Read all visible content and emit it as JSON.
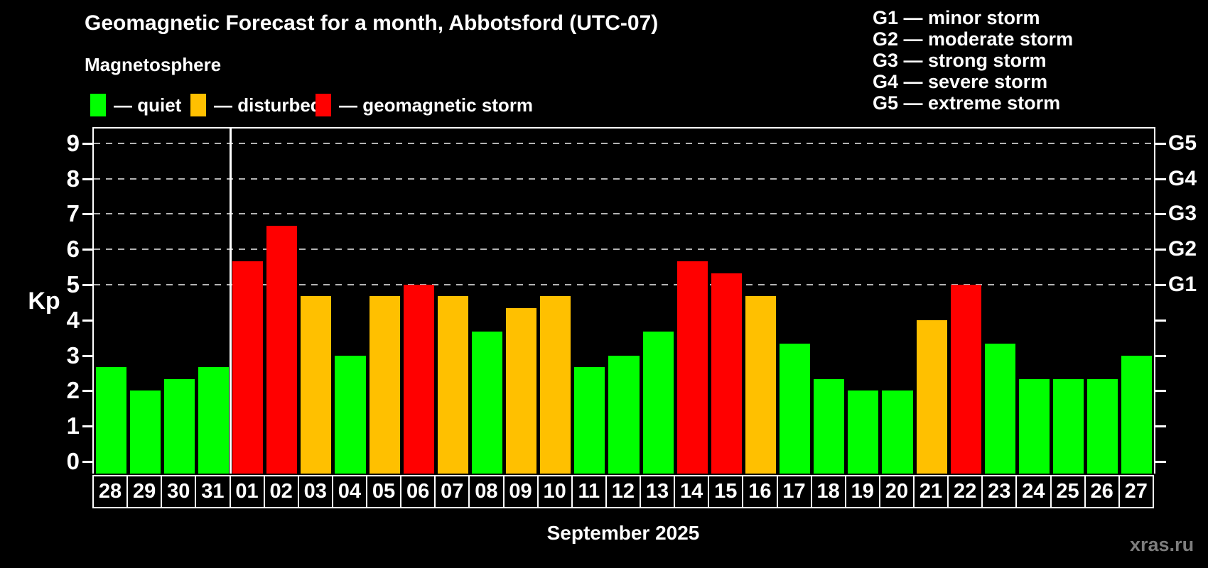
{
  "header": {
    "title": "Geomagnetic Forecast for a month, Abbotsford (UTC-07)",
    "subtitle": "Magnetosphere"
  },
  "legend": {
    "items": [
      {
        "key": "quiet",
        "label": "— quiet",
        "color": "#00ff00"
      },
      {
        "key": "disturbed",
        "label": "— disturbed",
        "color": "#ffc000"
      },
      {
        "key": "storm",
        "label": "— geomagnetic storm",
        "color": "#ff0000"
      }
    ]
  },
  "storm_scale_legend": {
    "items": [
      {
        "label": "G1 — minor storm"
      },
      {
        "label": "G2 — moderate storm"
      },
      {
        "label": "G3 — strong storm"
      },
      {
        "label": "G4 — severe storm"
      },
      {
        "label": "G5 — extreme storm"
      }
    ]
  },
  "chart_data": {
    "type": "bar",
    "title": "Geomagnetic Forecast for a month, Abbotsford (UTC-07)",
    "subtitle": "Magnetosphere",
    "xlabel": "September 2025",
    "ylabel": "Kp",
    "ylim": [
      -0.35,
      9.4
    ],
    "yticks": [
      0,
      1,
      2,
      3,
      4,
      5,
      6,
      7,
      8,
      9
    ],
    "gridlines": [
      5,
      6,
      7,
      8,
      9
    ],
    "grid_style": "dashed",
    "legend_position": "top",
    "right_axis_labels": [
      {
        "label": "G1",
        "value": 5
      },
      {
        "label": "G2",
        "value": 6
      },
      {
        "label": "G3",
        "value": 7
      },
      {
        "label": "G4",
        "value": 8
      },
      {
        "label": "G5",
        "value": 9
      }
    ],
    "categories": [
      "28",
      "29",
      "30",
      "31",
      "01",
      "02",
      "03",
      "04",
      "05",
      "06",
      "07",
      "08",
      "09",
      "10",
      "11",
      "12",
      "13",
      "14",
      "15",
      "16",
      "17",
      "18",
      "19",
      "20",
      "21",
      "22",
      "23",
      "24",
      "25",
      "26",
      "27"
    ],
    "values": [
      2.67,
      2,
      2.33,
      2.67,
      5.67,
      6.67,
      4.67,
      3,
      4.67,
      5,
      4.67,
      3.67,
      4.33,
      4.67,
      2.67,
      3,
      3.67,
      5.67,
      5.33,
      4.67,
      3.33,
      2.33,
      2,
      2,
      4,
      5,
      3.33,
      2.33,
      2.33,
      2.33,
      3
    ],
    "statuses": [
      "quiet",
      "quiet",
      "quiet",
      "quiet",
      "storm",
      "storm",
      "disturbed",
      "quiet",
      "disturbed",
      "storm",
      "disturbed",
      "quiet",
      "disturbed",
      "disturbed",
      "quiet",
      "quiet",
      "quiet",
      "storm",
      "storm",
      "disturbed",
      "quiet",
      "quiet",
      "quiet",
      "quiet",
      "disturbed",
      "storm",
      "quiet",
      "quiet",
      "quiet",
      "quiet",
      "quiet"
    ],
    "month_divider_before_index": 4,
    "colors": {
      "quiet": "#00ff00",
      "disturbed": "#ffc000",
      "storm": "#ff0000"
    }
  },
  "footer": {
    "xlabel": "September 2025",
    "watermark": "xras.ru"
  }
}
